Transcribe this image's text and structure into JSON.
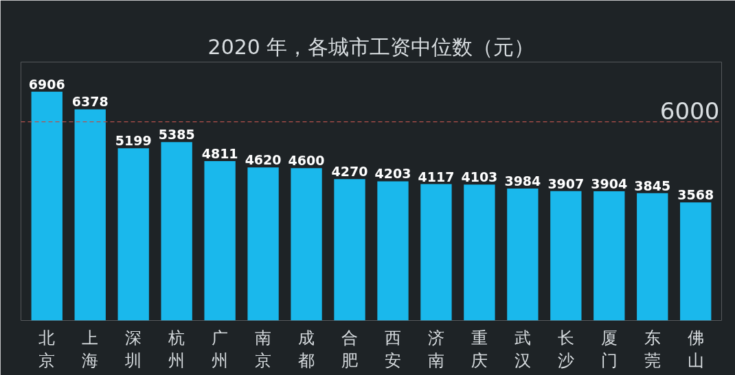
{
  "chart_data": {
    "type": "bar",
    "title": "2020 年，各城市工资中位数（元）",
    "categories": [
      "北京",
      "上海",
      "深圳",
      "杭州",
      "广州",
      "南京",
      "成都",
      "合肥",
      "西安",
      "济南",
      "重庆",
      "武汉",
      "长沙",
      "厦门",
      "东莞",
      "佛山"
    ],
    "values": [
      6906,
      6378,
      5199,
      5385,
      4811,
      4620,
      4600,
      4270,
      4203,
      4117,
      4103,
      3984,
      3907,
      3904,
      3845,
      3568
    ],
    "color": "#1ab8ec",
    "data_labels": true,
    "grid": false,
    "ref_lines": [
      {
        "axis": "y",
        "value": 6000,
        "label": "6000",
        "color": "#b5524c",
        "line_style": "dashed"
      }
    ]
  }
}
